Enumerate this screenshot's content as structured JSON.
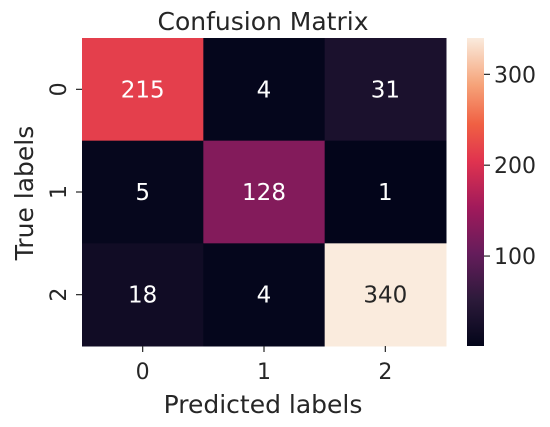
{
  "chart_data": {
    "type": "heatmap",
    "title": "Confusion Matrix",
    "xlabel": "Predicted labels",
    "ylabel": "True labels",
    "x_categories": [
      "0",
      "1",
      "2"
    ],
    "y_categories": [
      "0",
      "1",
      "2"
    ],
    "values": [
      [
        215,
        4,
        31
      ],
      [
        5,
        128,
        1
      ],
      [
        18,
        4,
        340
      ]
    ],
    "annotations": [
      [
        "215",
        "4",
        "31"
      ],
      [
        "5",
        "128",
        "1"
      ],
      [
        "18",
        "4",
        "340"
      ]
    ],
    "color_range": [
      1,
      340
    ],
    "colormap": "rocket",
    "colorbar_ticks": [
      100,
      200,
      300
    ],
    "grid": false,
    "legend": "colorbar-right"
  }
}
